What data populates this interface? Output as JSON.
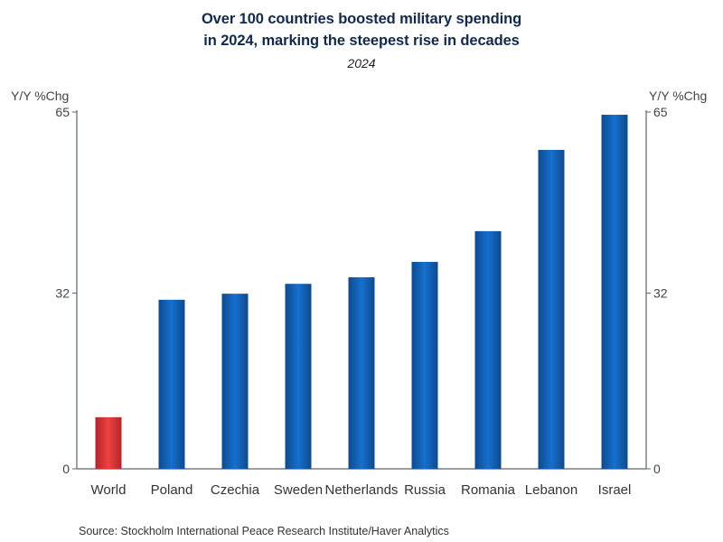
{
  "chart_data": {
    "type": "bar",
    "title": "Over 100 countries boosted military spending in 2024, marking the steepest rise in decades",
    "title_lines": [
      "Over 100 countries boosted military spending",
      "in 2024, marking the steepest rise in decades"
    ],
    "subtitle": "2024",
    "xlabel": "",
    "ylabel": "Y/Y %Chg",
    "ylabel_right": "Y/Y %Chg",
    "ylim": [
      0,
      65
    ],
    "yticks": [
      0,
      32,
      65
    ],
    "grid": false,
    "legend": "none",
    "categories": [
      "World",
      "Poland",
      "Czechia",
      "Sweden",
      "Netherlands",
      "Russia",
      "Romania",
      "Lebanon",
      "Israel"
    ],
    "values": [
      9.4,
      30.8,
      31.9,
      33.7,
      34.9,
      37.7,
      43.3,
      58.1,
      64.5
    ],
    "colors": {
      "highlight": {
        "edge": "#b3262c",
        "center": "#ef4040"
      },
      "default": {
        "edge": "#0f4a8c",
        "center": "#1570d0"
      }
    },
    "highlight_categories": [
      "World"
    ],
    "source": "Source:  Stockholm International Peace Research Institute/Haver Analytics"
  }
}
